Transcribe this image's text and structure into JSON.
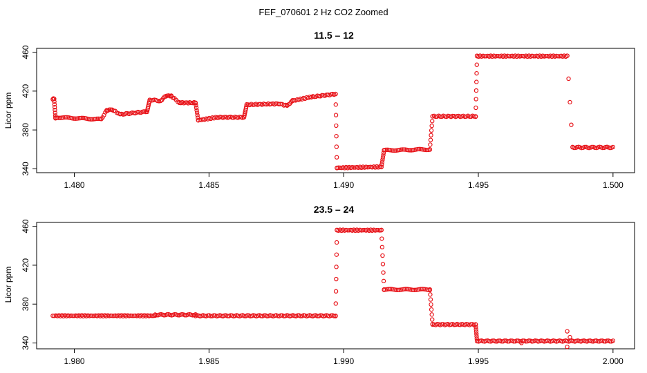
{
  "figure_title": "FEF_070601  2 Hz CO2 Zoomed",
  "colors": {
    "points": "#e8141a",
    "axes": "#000000",
    "background": "#ffffff"
  },
  "chart_data": [
    {
      "type": "scatter",
      "title": "11.5 – 12",
      "xlabel": "",
      "ylabel": "Licor ppm",
      "xlim": [
        1.4786,
        1.5008
      ],
      "ylim": [
        336,
        464
      ],
      "xticks": [
        1.48,
        1.485,
        1.49,
        1.495,
        1.5
      ],
      "xtick_labels": [
        "1.480",
        "1.485",
        "1.490",
        "1.495",
        "1.500"
      ],
      "yticks": [
        340,
        380,
        420,
        460
      ],
      "ytick_labels": [
        "340",
        "380",
        "420",
        "460"
      ],
      "segments": [
        {
          "x": [
            1.4792,
            1.47925
          ],
          "y": [
            412,
            412
          ]
        },
        {
          "x": [
            1.47925,
            1.4793
          ],
          "y": [
            412,
            392
          ]
        },
        {
          "x": [
            1.4793,
            1.481
          ],
          "y": [
            393,
            391
          ]
        },
        {
          "x": [
            1.481,
            1.4812
          ],
          "y": [
            391,
            400
          ]
        },
        {
          "x": [
            1.4812,
            1.4814
          ],
          "y": [
            400,
            401
          ]
        },
        {
          "x": [
            1.4814,
            1.4817
          ],
          "y": [
            401,
            396
          ]
        },
        {
          "x": [
            1.4817,
            1.4827
          ],
          "y": [
            396,
            399
          ]
        },
        {
          "x": [
            1.4827,
            1.4828
          ],
          "y": [
            399,
            411
          ]
        },
        {
          "x": [
            1.4828,
            1.4832
          ],
          "y": [
            411,
            410
          ]
        },
        {
          "x": [
            1.4832,
            1.4834
          ],
          "y": [
            410,
            415
          ]
        },
        {
          "x": [
            1.4834,
            1.4836
          ],
          "y": [
            415,
            415
          ]
        },
        {
          "x": [
            1.4836,
            1.4839
          ],
          "y": [
            415,
            408
          ]
        },
        {
          "x": [
            1.4839,
            1.4845
          ],
          "y": [
            408,
            408
          ]
        },
        {
          "x": [
            1.4845,
            1.4846
          ],
          "y": [
            408,
            390
          ]
        },
        {
          "x": [
            1.4846,
            1.4853
          ],
          "y": [
            390,
            393
          ]
        },
        {
          "x": [
            1.4853,
            1.4858
          ],
          "y": [
            393,
            393
          ]
        },
        {
          "x": [
            1.4858,
            1.4863
          ],
          "y": [
            393,
            393
          ]
        },
        {
          "x": [
            1.4863,
            1.4864
          ],
          "y": [
            393,
            406
          ]
        },
        {
          "x": [
            1.4864,
            1.4876
          ],
          "y": [
            406,
            407
          ]
        },
        {
          "x": [
            1.4876,
            1.4879
          ],
          "y": [
            407,
            405
          ]
        },
        {
          "x": [
            1.4879,
            1.4881
          ],
          "y": [
            405,
            410
          ]
        },
        {
          "x": [
            1.4881,
            1.4888
          ],
          "y": [
            410,
            414
          ]
        },
        {
          "x": [
            1.4888,
            1.4897
          ],
          "y": [
            414,
            417
          ]
        },
        {
          "x": [
            1.4897,
            1.48975
          ],
          "y": [
            417,
            341
          ]
        },
        {
          "x": [
            1.48975,
            1.4914
          ],
          "y": [
            341,
            342
          ]
        },
        {
          "x": [
            1.4914,
            1.4915
          ],
          "y": [
            342,
            359
          ]
        },
        {
          "x": [
            1.4915,
            1.4932
          ],
          "y": [
            359,
            360
          ]
        },
        {
          "x": [
            1.4932,
            1.4933
          ],
          "y": [
            360,
            394
          ]
        },
        {
          "x": [
            1.4933,
            1.4949
          ],
          "y": [
            394,
            394
          ]
        },
        {
          "x": [
            1.4949,
            1.49495
          ],
          "y": [
            394,
            456
          ]
        },
        {
          "x": [
            1.49495,
            1.4983
          ],
          "y": [
            456,
            456
          ]
        },
        {
          "x": [
            1.4983,
            1.4985
          ],
          "y": [
            456,
            362
          ]
        },
        {
          "x": [
            1.4985,
            1.5
          ],
          "y": [
            362,
            362
          ]
        }
      ]
    },
    {
      "type": "scatter",
      "title": "23.5 – 24",
      "xlabel": "",
      "ylabel": "Licor ppm",
      "xlim": [
        1.9786,
        2.0008
      ],
      "ylim": [
        334,
        464
      ],
      "xticks": [
        1.98,
        1.985,
        1.99,
        1.995,
        2.0
      ],
      "xtick_labels": [
        "1.980",
        "1.985",
        "1.990",
        "1.995",
        "2.000"
      ],
      "yticks": [
        340,
        380,
        420,
        460
      ],
      "ytick_labels": [
        "340",
        "380",
        "420",
        "460"
      ],
      "segments": [
        {
          "x": [
            1.9792,
            1.983
          ],
          "y": [
            368,
            368
          ]
        },
        {
          "x": [
            1.983,
            1.9845
          ],
          "y": [
            369,
            369
          ]
        },
        {
          "x": [
            1.9845,
            1.9897
          ],
          "y": [
            368,
            368
          ]
        },
        {
          "x": [
            1.9897,
            1.98975
          ],
          "y": [
            368,
            456
          ]
        },
        {
          "x": [
            1.98975,
            1.9914
          ],
          "y": [
            456,
            456
          ]
        },
        {
          "x": [
            1.9914,
            1.9915
          ],
          "y": [
            456,
            395
          ]
        },
        {
          "x": [
            1.9915,
            1.9932
          ],
          "y": [
            395,
            395
          ]
        },
        {
          "x": [
            1.9932,
            1.9933
          ],
          "y": [
            395,
            359
          ]
        },
        {
          "x": [
            1.9933,
            1.9949
          ],
          "y": [
            359,
            359
          ]
        },
        {
          "x": [
            1.9949,
            1.99495
          ],
          "y": [
            359,
            342
          ]
        },
        {
          "x": [
            1.99495,
            2.0
          ],
          "y": [
            342,
            342
          ]
        }
      ],
      "outliers": [
        {
          "x": 1.9983,
          "y": 352
        },
        {
          "x": 1.9983,
          "y": 336
        },
        {
          "x": 1.9984,
          "y": 346
        },
        {
          "x": 1.9966,
          "y": 340
        }
      ]
    }
  ]
}
